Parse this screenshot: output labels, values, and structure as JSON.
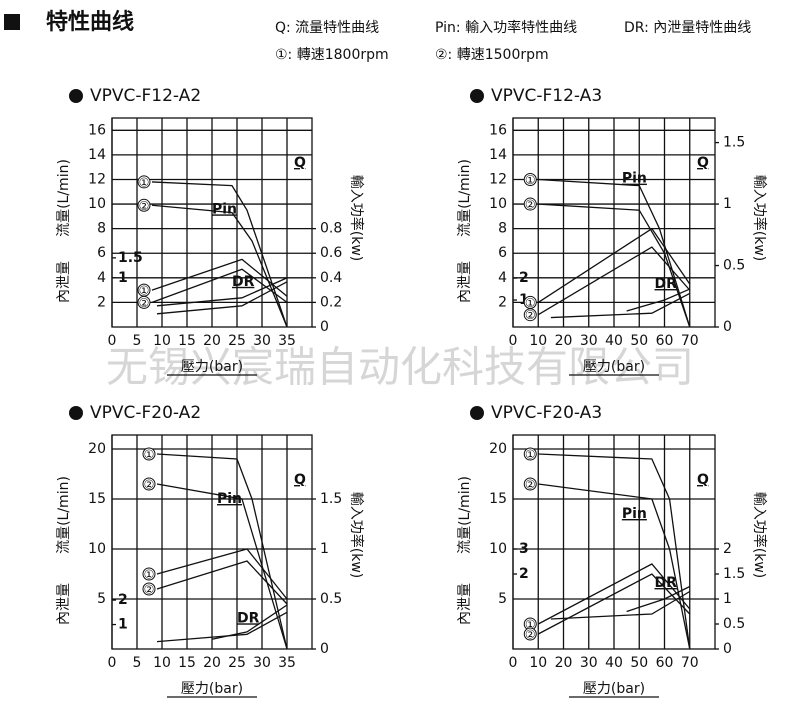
{
  "header": {
    "title": "特性曲线",
    "legend": [
      "Q:  流量特性曲线",
      "Pin:  輸入功率特性曲线",
      "DR:  內泄量特性曲线",
      "①:  轉速1800rpm",
      "②:  轉速1500rpm"
    ]
  },
  "watermark": "无锡兴宸瑞自动化科技有限公司",
  "chart_data": [
    {
      "type": "line",
      "title": "VPVC-F12-A2",
      "x_label": "壓力(bar)",
      "y_label": "流量(L/min)",
      "y2_label": "輸入功率(kw)",
      "y3_label": "內泄量",
      "xlim": [
        0,
        40
      ],
      "xticks": [
        0,
        5,
        10,
        15,
        20,
        25,
        30,
        35
      ],
      "ylim": [
        0,
        17
      ],
      "yticks": [
        2,
        4,
        6,
        8,
        10,
        12,
        14,
        16
      ],
      "y2lim": [
        0,
        1.7
      ],
      "y2ticks": [
        0,
        0.2,
        0.4,
        0.6,
        0.8
      ],
      "y3lim": [
        -0.23,
        5
      ],
      "y3ticks": [
        1,
        1.5
      ],
      "series": [
        {
          "name": "Q",
          "axis": "y",
          "lines": [
            {
              "label": "①",
              "x": [
                8,
                24,
                27,
                35
              ],
              "values": [
                11.8,
                11.5,
                9.5,
                0
              ]
            },
            {
              "label": "②",
              "x": [
                8,
                24,
                28,
                35
              ],
              "values": [
                9.9,
                9.3,
                7,
                0
              ]
            }
          ]
        },
        {
          "name": "Pin",
          "axis": "y2",
          "lines": [
            {
              "label": "①",
              "x": [
                8,
                26,
                35
              ],
              "values": [
                0.3,
                0.55,
                0.25
              ]
            },
            {
              "label": "②",
              "x": [
                8,
                26,
                35
              ],
              "values": [
                0.2,
                0.47,
                0.2
              ]
            }
          ]
        },
        {
          "name": "DR",
          "axis": "y3",
          "lines": [
            {
              "x": [
                9,
                26,
                35
              ],
              "values": [
                0.3,
                0.5,
                1
              ]
            },
            {
              "x": [
                9,
                26,
                35
              ],
              "values": [
                0.1,
                0.3,
                0.9
              ]
            }
          ]
        }
      ]
    },
    {
      "type": "line",
      "title": "VPVC-F12-A3",
      "x_label": "壓力(bar)",
      "y_label": "流量(L/min)",
      "y2_label": "輸入功率(kw)",
      "y3_label": "內泄量",
      "xlim": [
        0,
        80
      ],
      "xticks": [
        0,
        10,
        20,
        30,
        40,
        50,
        60,
        70
      ],
      "ylim": [
        0,
        17
      ],
      "yticks": [
        2,
        4,
        6,
        8,
        10,
        12,
        14,
        16
      ],
      "y2lim": [
        0,
        1.7
      ],
      "y2ticks": [
        0,
        0.5,
        1.0,
        1.5
      ],
      "y3lim": [
        -0.23,
        9.3
      ],
      "y3ticks": [
        1,
        2
      ],
      "series": [
        {
          "name": "Q",
          "axis": "y",
          "lines": [
            {
              "label": "①",
              "x": [
                10,
                50,
                58,
                70
              ],
              "values": [
                12,
                11.5,
                8,
                0
              ]
            },
            {
              "label": "②",
              "x": [
                10,
                50,
                60,
                70
              ],
              "values": [
                10,
                9.5,
                6,
                0
              ]
            }
          ]
        },
        {
          "name": "Pin",
          "axis": "y2",
          "lines": [
            {
              "label": "①",
              "x": [
                10,
                55,
                70
              ],
              "values": [
                0.2,
                0.8,
                0.35
              ]
            },
            {
              "label": "②",
              "x": [
                10,
                55,
                70
              ],
              "values": [
                0.1,
                0.65,
                0.3
              ]
            }
          ]
        },
        {
          "name": "DR",
          "axis": "y3",
          "lines": [
            {
              "x": [
                45,
                60,
                70
              ],
              "values": [
                0.5,
                1,
                1.5
              ]
            },
            {
              "x": [
                15,
                55,
                70
              ],
              "values": [
                0.2,
                0.4,
                1.3
              ]
            }
          ]
        }
      ]
    },
    {
      "type": "line",
      "title": "VPVC-F20-A2",
      "x_label": "壓力(bar)",
      "y_label": "流量(L/min)",
      "y2_label": "輸入功率(kw)",
      "y3_label": "內泄量",
      "xlim": [
        0,
        40
      ],
      "xticks": [
        0,
        5,
        10,
        15,
        20,
        25,
        30,
        35
      ],
      "ylim": [
        0,
        21.4
      ],
      "yticks": [
        5,
        10,
        15,
        20
      ],
      "y2lim": [
        0,
        2.14
      ],
      "y2ticks": [
        0,
        0.5,
        1.0,
        1.5
      ],
      "y3lim": [
        0,
        8.75
      ],
      "y3ticks": [
        1,
        2
      ],
      "series": [
        {
          "name": "Q",
          "axis": "y",
          "lines": [
            {
              "label": "①",
              "x": [
                9,
                25,
                28,
                35
              ],
              "values": [
                19.5,
                19,
                15,
                0
              ]
            },
            {
              "label": "②",
              "x": [
                9,
                26,
                29,
                35
              ],
              "values": [
                16.5,
                15,
                10,
                0
              ]
            }
          ]
        },
        {
          "name": "Pin",
          "axis": "y2",
          "lines": [
            {
              "label": "①",
              "x": [
                9,
                27,
                35
              ],
              "values": [
                0.75,
                1.0,
                0.5
              ]
            },
            {
              "label": "②",
              "x": [
                9,
                27,
                35
              ],
              "values": [
                0.6,
                0.88,
                0.45
              ]
            }
          ]
        },
        {
          "name": "DR",
          "axis": "y3",
          "lines": [
            {
              "x": [
                9,
                27,
                35
              ],
              "values": [
                0.3,
                0.6,
                1.5
              ]
            },
            {
              "x": [
                20,
                27,
                35
              ],
              "values": [
                0.4,
                0.7,
                1.8
              ]
            }
          ]
        }
      ]
    },
    {
      "type": "line",
      "title": "VPVC-F20-A3",
      "x_label": "壓力(bar)",
      "y_label": "流量(L/min)",
      "y2_label": "輸入功率(kw)",
      "y3_label": "內泄量",
      "xlim": [
        0,
        80
      ],
      "xticks": [
        0,
        10,
        20,
        30,
        40,
        50,
        60,
        70
      ],
      "ylim": [
        0,
        21.4
      ],
      "yticks": [
        5,
        10,
        15,
        20
      ],
      "y2lim": [
        0,
        4.28
      ],
      "y2ticks": [
        0,
        0.5,
        1.0,
        1.5,
        2.0
      ],
      "y3lim": [
        -1,
        7.56
      ],
      "y3ticks": [
        2,
        3
      ],
      "series": [
        {
          "name": "Q",
          "axis": "y",
          "lines": [
            {
              "label": "①",
              "x": [
                10,
                55,
                62,
                70
              ],
              "values": [
                19.5,
                19,
                15,
                0
              ]
            },
            {
              "label": "②",
              "x": [
                10,
                55,
                62,
                70
              ],
              "values": [
                16.5,
                15,
                10,
                0
              ]
            }
          ]
        },
        {
          "name": "Pin",
          "axis": "y2",
          "lines": [
            {
              "label": "①",
              "x": [
                10,
                55,
                70
              ],
              "values": [
                0.5,
                1.7,
                0.8
              ]
            },
            {
              "label": "②",
              "x": [
                10,
                55,
                70
              ],
              "values": [
                0.3,
                1.5,
                0.7
              ]
            }
          ]
        },
        {
          "name": "DR",
          "axis": "y3",
          "lines": [
            {
              "x": [
                45,
                60,
                70
              ],
              "values": [
                0.5,
                1,
                1.5
              ]
            },
            {
              "x": [
                15,
                55,
                70
              ],
              "values": [
                0.2,
                0.4,
                1.3
              ]
            }
          ]
        }
      ]
    }
  ]
}
